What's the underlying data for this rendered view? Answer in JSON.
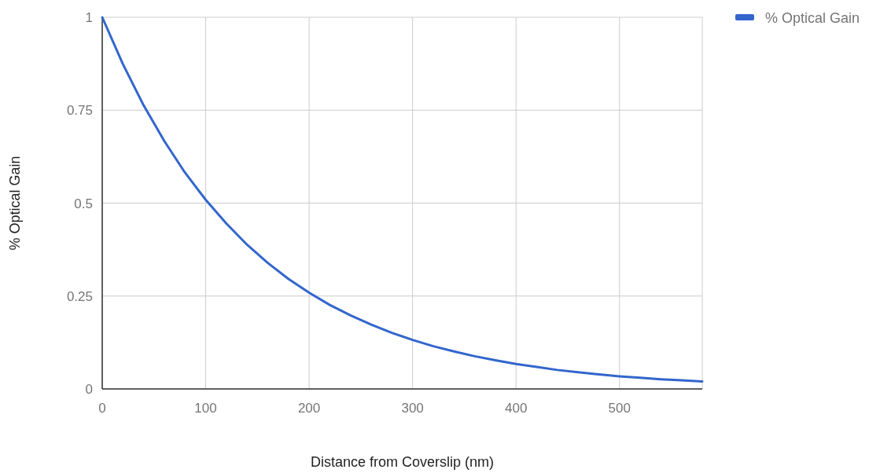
{
  "chart_data": {
    "type": "line",
    "xlabel": "Distance from  Coverslip (nm)",
    "ylabel": "% Optical Gain",
    "x": [
      0,
      20,
      40,
      60,
      80,
      100,
      120,
      140,
      160,
      180,
      200,
      220,
      240,
      260,
      280,
      300,
      320,
      340,
      360,
      380,
      400,
      420,
      440,
      460,
      480,
      500,
      520,
      540,
      560,
      580
    ],
    "series": [
      {
        "name": "% Optical Gain",
        "color": "#3366cc",
        "values": [
          1,
          0.874,
          0.763,
          0.667,
          0.582,
          0.509,
          0.445,
          0.388,
          0.339,
          0.296,
          0.259,
          0.226,
          0.198,
          0.173,
          0.151,
          0.132,
          0.115,
          0.101,
          0.088,
          0.077,
          0.067,
          0.059,
          0.051,
          0.045,
          0.039,
          0.034,
          0.03,
          0.026,
          0.023,
          0.02
        ]
      }
    ],
    "xlim": [
      0,
      580
    ],
    "xticks": [
      0,
      100,
      200,
      300,
      400,
      500
    ],
    "ylim": [
      0,
      1
    ],
    "yticks": [
      0,
      0.25,
      0.5,
      0.75,
      1
    ],
    "grid": true,
    "legend": "top right",
    "line_style": "solid",
    "marker": "none"
  }
}
